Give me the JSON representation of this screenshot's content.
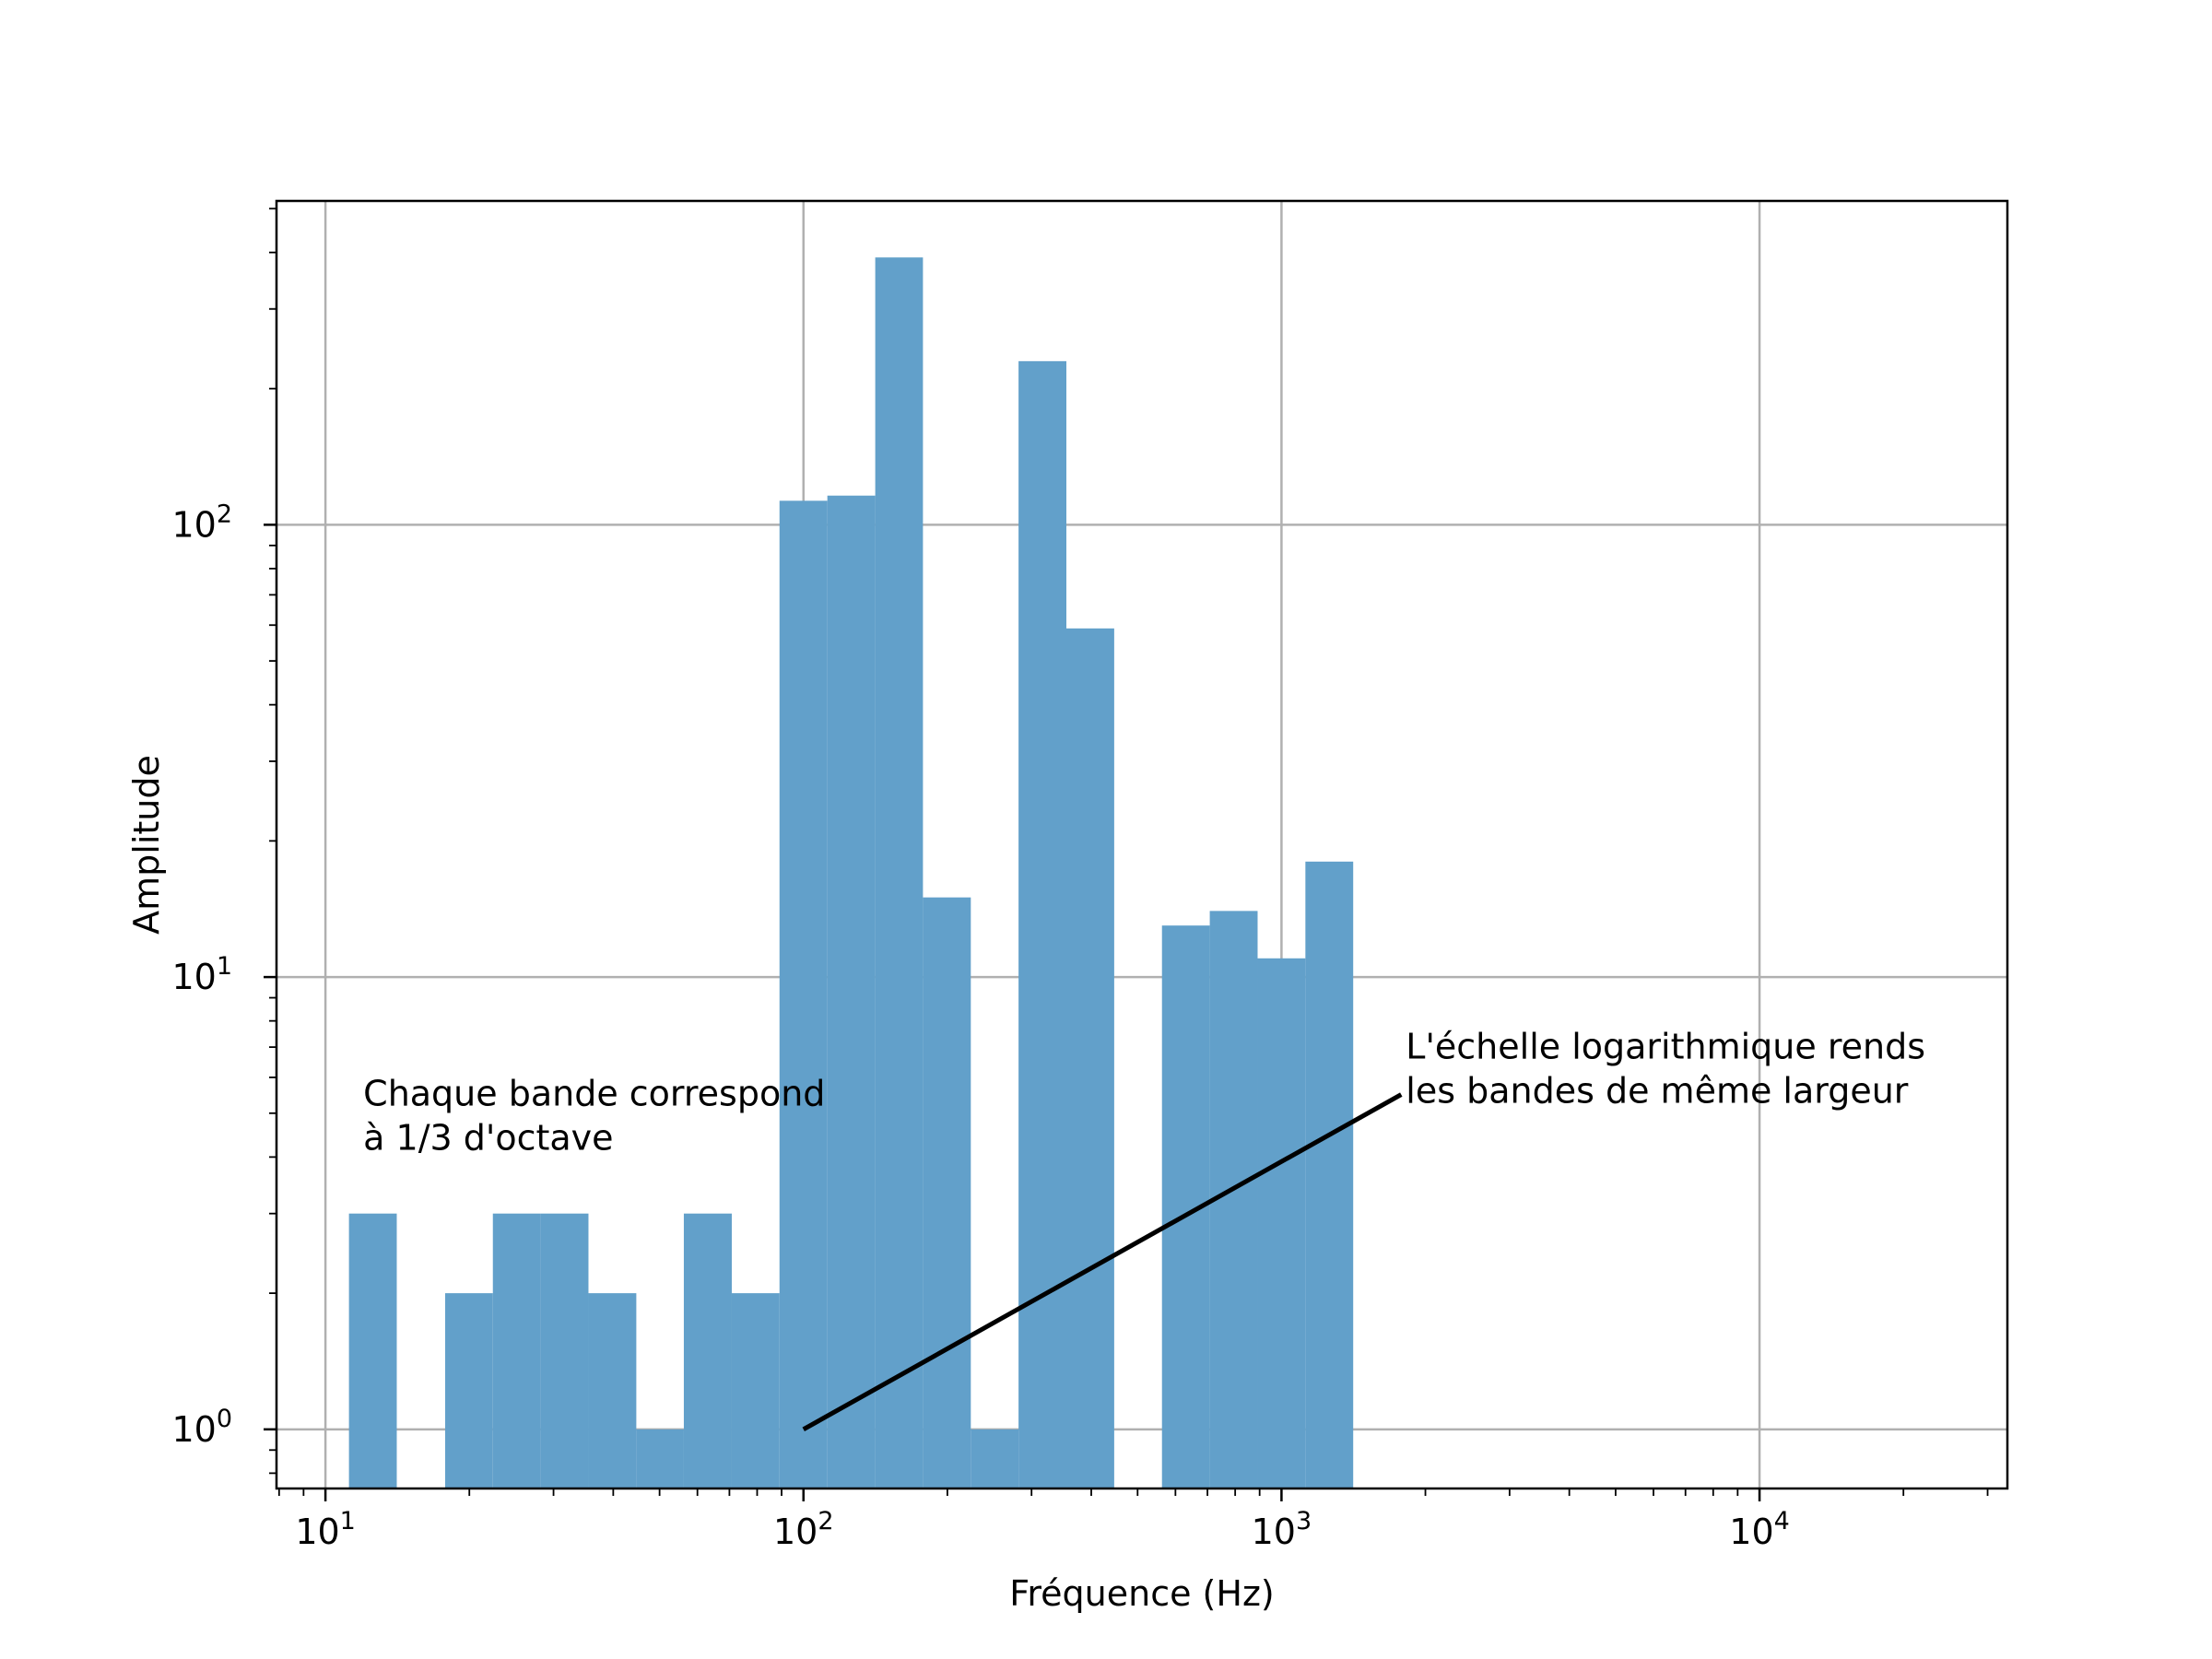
{
  "chart_data": {
    "type": "bar",
    "title": "",
    "xlabel": "Fréquence (Hz)",
    "ylabel": "Amplitude",
    "x_scale": "log",
    "y_scale": "log",
    "xlim": [
      7.9,
      33000
    ],
    "ylim": [
      0.74,
      520
    ],
    "grid": true,
    "x_ticks": [
      {
        "value": 10,
        "base": "10",
        "exp": "1"
      },
      {
        "value": 100,
        "base": "10",
        "exp": "2"
      },
      {
        "value": 1000,
        "base": "10",
        "exp": "3"
      },
      {
        "value": 10000,
        "base": "10",
        "exp": "4"
      }
    ],
    "y_ticks": [
      {
        "value": 1,
        "base": "10",
        "exp": "0"
      },
      {
        "value": 10,
        "base": "10",
        "exp": "1"
      },
      {
        "value": 100,
        "base": "10",
        "exp": "2"
      }
    ],
    "bar_color": "#62a0ca",
    "bins": [
      {
        "left": 11.2,
        "right": 14.1,
        "value": 3
      },
      {
        "left": 14.1,
        "right": 17.8,
        "value": 0
      },
      {
        "left": 17.8,
        "right": 22.4,
        "value": 2
      },
      {
        "left": 22.4,
        "right": 28.2,
        "value": 3
      },
      {
        "left": 28.2,
        "right": 35.5,
        "value": 3
      },
      {
        "left": 35.5,
        "right": 44.7,
        "value": 2
      },
      {
        "left": 44.7,
        "right": 56.2,
        "value": 1
      },
      {
        "left": 56.2,
        "right": 70.8,
        "value": 3
      },
      {
        "left": 70.8,
        "right": 89.1,
        "value": 2
      },
      {
        "left": 89.1,
        "right": 112.2,
        "value": 113
      },
      {
        "left": 112.2,
        "right": 141.3,
        "value": 116
      },
      {
        "left": 141.3,
        "right": 177.8,
        "value": 390
      },
      {
        "left": 177.8,
        "right": 223.9,
        "value": 15
      },
      {
        "left": 223.9,
        "right": 281.8,
        "value": 1
      },
      {
        "left": 281.8,
        "right": 354.8,
        "value": 230
      },
      {
        "left": 354.8,
        "right": 446.7,
        "value": 59
      },
      {
        "left": 446.7,
        "right": 562.3,
        "value": 0
      },
      {
        "left": 562.3,
        "right": 707.9,
        "value": 13
      },
      {
        "left": 707.9,
        "right": 891.3,
        "value": 14
      },
      {
        "left": 891.3,
        "right": 1122.0,
        "value": 11
      },
      {
        "left": 1122.0,
        "right": 1412.5,
        "value": 18
      }
    ],
    "annotations": [
      {
        "lines": [
          "Chaque bande correspond",
          "à 1/3 d'octave"
        ],
        "x": 12,
        "y": 5.2
      },
      {
        "lines": [
          "L'échelle logarithmique rends",
          "les bandes de même largeur"
        ],
        "x": 1820,
        "y": 6.6,
        "arrow_from": [
          1780,
          5.5
        ],
        "arrow_to": [
          100,
          1
        ]
      }
    ]
  }
}
